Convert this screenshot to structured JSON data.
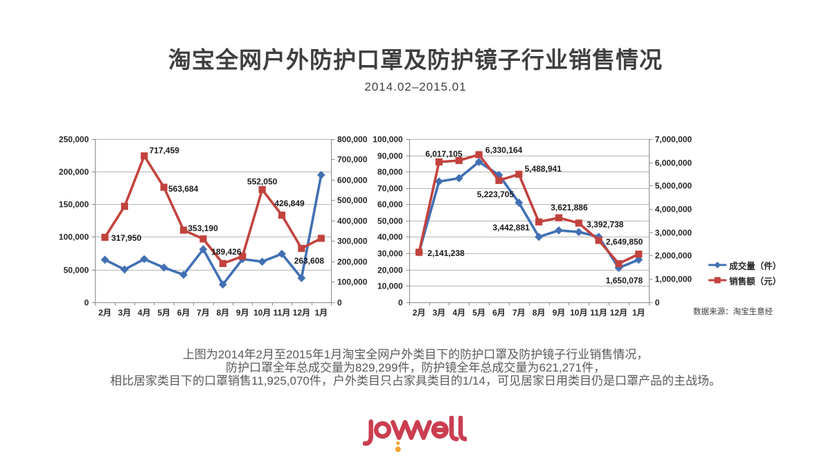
{
  "title": "淘宝全网户外防护口罩及防护镜子行业销售情况",
  "subtitle": "2014.02–2015.01",
  "legend": {
    "items": [
      {
        "id": "volume",
        "label": "成交量（件）"
      },
      {
        "id": "sales",
        "label": "销售额（元）"
      }
    ]
  },
  "source_note": "数据来源：淘宝生意经",
  "summary_lines": [
    "上图为2014年2月至2015年1月淘宝全网户外类目下的防护口罩及防护镜子行业销售情况，",
    "防护口罩全年总成交量为829,299件，防护镜全年总成交量为621,271件，",
    "相比居家类目下的口罩销售11,925,070件，户外类目只占家具类目的1/14，可见居家日用类目仍是口罩产品的主战场。"
  ],
  "logo": {
    "brand": "joywell",
    "text_color": "#CA3E50",
    "dot_color": "#F0A42E"
  },
  "colors": {
    "volume": "#4170B4",
    "sales": "#C2433E",
    "grid": "#B6B6B6",
    "axis": "#8A8A8A",
    "tick_text": "#262626",
    "data_label": "#1A1A1A"
  },
  "chart_data": [
    {
      "type": "line",
      "position": "left",
      "categories": [
        "2月",
        "3月",
        "4月",
        "5月",
        "6月",
        "7月",
        "8月",
        "9月",
        "10月",
        "11月",
        "12月",
        "1月"
      ],
      "left_axis": {
        "min": 0,
        "max": 250000,
        "step": 50000
      },
      "right_axis": {
        "min": 0,
        "max": 800000,
        "step": 100000
      },
      "series": [
        {
          "id": "volume",
          "name": "成交量（件）",
          "axis": "left",
          "marker": "diamond",
          "values": [
            65000,
            50000,
            66000,
            53000,
            42000,
            81000,
            27000,
            66000,
            62000,
            74000,
            37000,
            195000
          ]
        },
        {
          "id": "sales",
          "name": "销售额（元）",
          "axis": "right",
          "marker": "square",
          "values": [
            317950,
            470000,
            717459,
            563684,
            353190,
            310000,
            189426,
            225000,
            552050,
            426849,
            263608,
            313000
          ],
          "point_labels": [
            {
              "i": 0,
              "t": "317,950",
              "dx": 31,
              "dy": 1
            },
            {
              "i": 2,
              "t": "717,459",
              "dx": 29,
              "dy": -8
            },
            {
              "i": 3,
              "t": "563,684",
              "dx": 28,
              "dy": 2
            },
            {
              "i": 4,
              "t": "353,190",
              "dx": 28,
              "dy": -3
            },
            {
              "i": 6,
              "t": "189,426",
              "dx": 5,
              "dy": -17
            },
            {
              "i": 8,
              "t": "552,050",
              "dx": 0,
              "dy": -12
            },
            {
              "i": 9,
              "t": "426,849",
              "dx": 11,
              "dy": -17
            },
            {
              "i": 10,
              "t": "263,608",
              "dx": 11,
              "dy": 18
            }
          ]
        }
      ]
    },
    {
      "type": "line",
      "position": "right",
      "categories": [
        "2月",
        "3月",
        "4月",
        "5月",
        "6月",
        "7月",
        "8月",
        "9月",
        "10月",
        "11月",
        "12月",
        "1月"
      ],
      "left_axis": {
        "min": 0,
        "max": 100000,
        "step": 10000
      },
      "right_axis": {
        "min": 0,
        "max": 7000000,
        "step": 1000000
      },
      "series": [
        {
          "id": "volume",
          "name": "成交量（件）",
          "axis": "left",
          "marker": "diamond",
          "values": [
            30500,
            74000,
            76000,
            86000,
            78000,
            61000,
            40000,
            44000,
            43000,
            40000,
            21000,
            26000
          ]
        },
        {
          "id": "sales",
          "name": "销售额（元）",
          "axis": "right",
          "marker": "square",
          "values": [
            2141238,
            6017105,
            6080000,
            6330164,
            5223705,
            5488941,
            3442881,
            3621886,
            3392738,
            2649850,
            1650078,
            2060000
          ],
          "point_labels": [
            {
              "i": 0,
              "t": "2,141,238",
              "dx": 39,
              "dy": 1
            },
            {
              "i": 1,
              "t": "6,017,105",
              "dx": 7,
              "dy": -12
            },
            {
              "i": 3,
              "t": "6,330,164",
              "dx": 36,
              "dy": -7
            },
            {
              "i": 4,
              "t": "5,223,705",
              "dx": -5,
              "dy": 20
            },
            {
              "i": 5,
              "t": "5,488,941",
              "dx": 35,
              "dy": -8
            },
            {
              "i": 6,
              "t": "3,442,881",
              "dx": -40,
              "dy": 8
            },
            {
              "i": 7,
              "t": "3,621,886",
              "dx": 15,
              "dy": -15
            },
            {
              "i": 8,
              "t": "3,392,738",
              "dx": 38,
              "dy": 2
            },
            {
              "i": 9,
              "t": "2,649,850",
              "dx": 37,
              "dy": 2
            },
            {
              "i": 10,
              "t": "1,650,078",
              "dx": 8,
              "dy": 24
            }
          ]
        }
      ]
    }
  ]
}
